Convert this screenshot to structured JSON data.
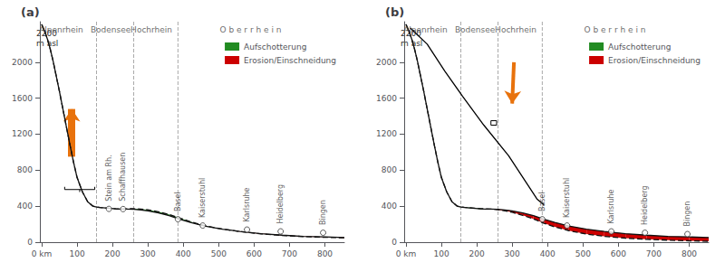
{
  "chart_data": [
    {
      "type": "line",
      "title": "(a)",
      "ylabel": "2200\nm asl",
      "xlim": [
        -5,
        855
      ],
      "xticks": [
        {
          "value": 0,
          "label": "0 km"
        },
        100,
        200,
        300,
        400,
        500,
        600,
        700,
        800
      ],
      "ylim": [
        0,
        2450
      ],
      "yticks": [
        0,
        400,
        800,
        1200,
        1600,
        2000
      ],
      "grid": false,
      "legend": "upper right",
      "series": [
        {
          "x": [
            0,
            8,
            16,
            24,
            32,
            40,
            50,
            60,
            70,
            80,
            90,
            100,
            115,
            130,
            145,
            155,
            165,
            180,
            195,
            210,
            225,
            240,
            260,
            280,
            300,
            330,
            360,
            390,
            420,
            460,
            510,
            560,
            620,
            680,
            740,
            800,
            855
          ],
          "values": [
            2420,
            2350,
            2260,
            2150,
            2020,
            1870,
            1680,
            1480,
            1280,
            1080,
            890,
            720,
            560,
            450,
            400,
            390,
            385,
            380,
            375,
            370,
            368,
            368,
            365,
            358,
            348,
            325,
            295,
            255,
            220,
            180,
            145,
            120,
            95,
            78,
            65,
            58,
            52
          ],
          "color": "#111111",
          "line_style": "solid"
        },
        {
          "x": [
            0,
            8,
            16,
            24,
            32,
            40,
            50,
            60,
            70,
            80,
            90,
            100,
            115,
            130,
            145,
            155,
            165,
            180,
            195,
            210,
            225,
            240,
            260,
            280,
            300,
            330,
            360,
            390,
            420,
            460,
            510,
            560,
            620,
            680,
            740,
            800,
            855
          ],
          "values": [
            2420,
            2350,
            2260,
            2150,
            2020,
            1870,
            1680,
            1480,
            1280,
            1080,
            890,
            720,
            560,
            450,
            400,
            390,
            385,
            380,
            375,
            370,
            368,
            371,
            372,
            368,
            360,
            338,
            308,
            268,
            228,
            184,
            146,
            118,
            92,
            75,
            62,
            54,
            48
          ],
          "color": "#111111",
          "line_style": "dashed"
        }
      ],
      "fills": [
        {
          "name": "Aufschotterung",
          "color": "#228B22"
        },
        {
          "name": "Erosion/Einschneidung",
          "color": "#cc0000"
        }
      ],
      "vlines": {
        "values": [
          155,
          260,
          385
        ],
        "color": "#aaaaaa"
      },
      "annotations": [
        {
          "text": "Alpenrhein",
          "x": 55,
          "y": 2410
        },
        {
          "text": "Bodensee",
          "x": 195,
          "y": 2410
        },
        {
          "text": "Hochrhein",
          "x": 310,
          "y": 2410
        },
        {
          "text": "O b e r r h e i n",
          "x": 590,
          "y": 2410
        }
      ],
      "segments": {
        "color": "#000000",
        "values": [
          {
            "x": [
              65,
              150
            ],
            "y": [
              585,
              585
            ]
          },
          {
            "x": [
              65,
              65
            ],
            "y": [
              585,
              615
            ]
          },
          {
            "x": [
              150,
              150
            ],
            "y": [
              585,
              615
            ]
          },
          {
            "x": [
              107.5,
              107.5
            ],
            "y": [
              585,
              557
            ]
          }
        ]
      },
      "arrows": [
        {
          "x": [
            85,
            85
          ],
          "y": [
            950,
            1480
          ],
          "color": "#E8720C",
          "line_style": "straight"
        }
      ],
      "points": {
        "marker": "circle",
        "color": "#ffffff",
        "values": [
          {
            "name": "Stein am Rh.",
            "x": 190,
            "y": 370
          },
          {
            "name": "Schaffhausen",
            "x": 230,
            "y": 368
          },
          {
            "name": "Basel",
            "x": 385,
            "y": 255
          },
          {
            "name": "Kaiserstuhl",
            "x": 455,
            "y": 185
          },
          {
            "name": "Karlsruhe",
            "x": 580,
            "y": 140
          },
          {
            "name": "Heidelberg",
            "x": 675,
            "y": 120
          },
          {
            "name": "Bingen",
            "x": 795,
            "y": 105
          }
        ]
      }
    },
    {
      "type": "line",
      "title": "(b)",
      "ylabel": "2200\nm asl",
      "xlim": [
        -5,
        855
      ],
      "xticks": [
        {
          "value": 0,
          "label": "0 km"
        },
        100,
        200,
        300,
        400,
        500,
        600,
        700,
        800
      ],
      "ylim": [
        0,
        2450
      ],
      "yticks": [
        0,
        400,
        800,
        1200,
        1600,
        2000
      ],
      "grid": false,
      "legend": "upper right",
      "series": [
        {
          "x": [
            0,
            8,
            16,
            24,
            32,
            40,
            50,
            60,
            70,
            80,
            90,
            100,
            115,
            130,
            145,
            155,
            165,
            180,
            195,
            210,
            225,
            240,
            260,
            280,
            300,
            330,
            360,
            390,
            420,
            460,
            510,
            560,
            620,
            680,
            740,
            800,
            855
          ],
          "values": [
            2420,
            2350,
            2260,
            2150,
            2020,
            1870,
            1680,
            1480,
            1280,
            1080,
            890,
            720,
            560,
            450,
            400,
            390,
            385,
            380,
            375,
            370,
            368,
            368,
            365,
            358,
            348,
            325,
            295,
            255,
            220,
            180,
            145,
            120,
            95,
            78,
            65,
            58,
            52
          ],
          "color": "#111111",
          "line_style": "solid"
        },
        {
          "x": [
            0,
            8,
            16,
            24,
            32,
            40,
            50,
            60,
            70,
            80,
            90,
            100,
            115,
            130,
            145,
            155,
            165,
            180,
            195,
            210,
            225,
            240,
            260,
            280,
            300,
            330,
            360,
            390,
            420,
            460,
            510,
            560,
            620,
            680,
            740,
            800,
            855
          ],
          "values": [
            2420,
            2350,
            2260,
            2150,
            2020,
            1870,
            1680,
            1480,
            1280,
            1080,
            890,
            720,
            560,
            450,
            400,
            392,
            388,
            383,
            378,
            373,
            370,
            368,
            360,
            348,
            332,
            298,
            258,
            210,
            170,
            128,
            90,
            65,
            45,
            32,
            22,
            15,
            10
          ],
          "color": "#111111",
          "line_style": "dashed"
        },
        {
          "x": [
            12,
            60,
            110,
            160,
            220,
            290,
            370,
            390
          ],
          "values": [
            2380,
            2200,
            1900,
            1620,
            1300,
            960,
            480,
            415
          ],
          "color": "#000000",
          "line_style": "solid"
        }
      ],
      "fills": [
        {
          "name": "Aufschotterung",
          "color": "#228B22"
        },
        {
          "name": "Erosion/Einschneidung",
          "color": "#cc0000"
        }
      ],
      "vlines": {
        "values": [
          155,
          260,
          385
        ],
        "color": "#aaaaaa"
      },
      "annotations": [
        {
          "text": "Alpenrhein",
          "x": 55,
          "y": 2410
        },
        {
          "text": "Bodensee",
          "x": 195,
          "y": 2410
        },
        {
          "text": "Hochrhein",
          "x": 310,
          "y": 2410
        },
        {
          "text": "O b e r r h e i n",
          "x": 590,
          "y": 2410
        }
      ],
      "segments": {
        "color": "#000000",
        "values": [
          {
            "x": [
              240,
              256
            ],
            "y": [
              1300,
              1300
            ]
          },
          {
            "x": [
              240,
              256
            ],
            "y": [
              1350,
              1350
            ]
          },
          {
            "x": [
              240,
              240
            ],
            "y": [
              1300,
              1350
            ]
          },
          {
            "x": [
              256,
              256
            ],
            "y": [
              1300,
              1350
            ]
          }
        ]
      },
      "arrows": [
        {
          "x": [
            305,
            300
          ],
          "y": [
            2000,
            1540
          ],
          "color": "#E8720C",
          "line_style": "curved"
        }
      ],
      "points": {
        "marker": "circle",
        "color": "#ffffff",
        "values": [
          {
            "name": "Basel",
            "x": 385,
            "y": 255
          },
          {
            "name": "Kaiserstuhl",
            "x": 455,
            "y": 185
          },
          {
            "name": "Karlsruhe",
            "x": 580,
            "y": 120
          },
          {
            "name": "Heidelberg",
            "x": 675,
            "y": 105
          },
          {
            "name": "Bingen",
            "x": 795,
            "y": 90
          }
        ]
      }
    }
  ]
}
